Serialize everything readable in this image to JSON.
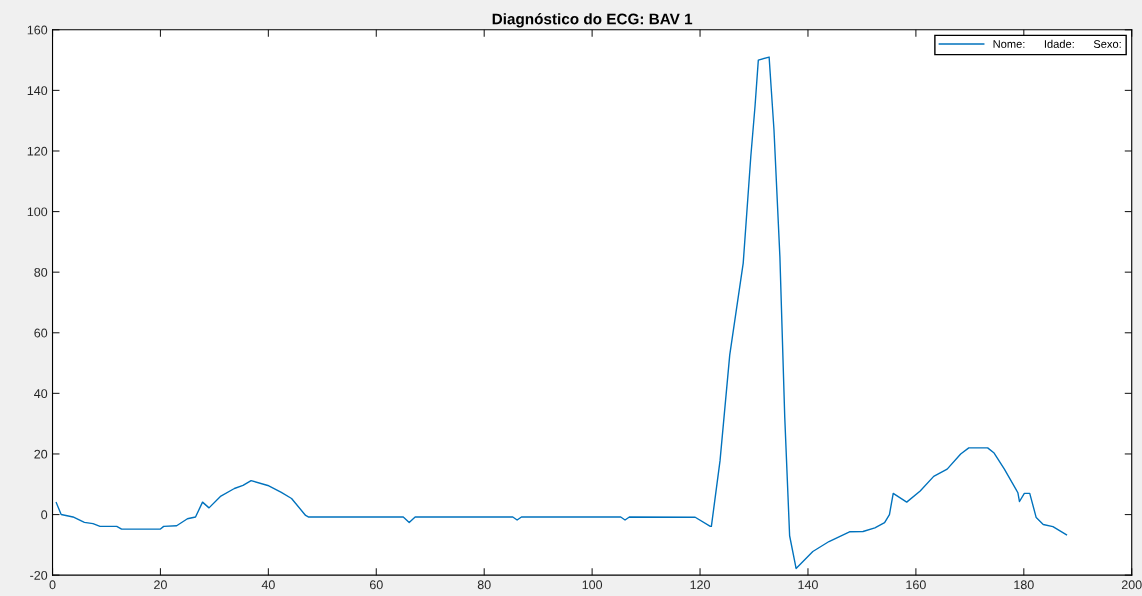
{
  "chart_data": {
    "type": "line",
    "title": "Diagnóstico do ECG: BAV 1",
    "xlim": [
      0,
      200
    ],
    "ylim": [
      -20,
      160
    ],
    "xticks": [
      0,
      20,
      40,
      60,
      80,
      100,
      120,
      140,
      160,
      180,
      200
    ],
    "yticks": [
      -20,
      0,
      20,
      40,
      60,
      80,
      100,
      120,
      140,
      160
    ],
    "grid": false,
    "legend": "top right",
    "line_style": "solid",
    "marker": "none",
    "series": [
      {
        "name": "Nome:      Idade:      Sexo:",
        "color": "#0072bd",
        "x": [
          0.7,
          1.6,
          3.8,
          5.9,
          7.5,
          8.8,
          11.9,
          12.8,
          20.0,
          20.6,
          23.0,
          25.0,
          26.5,
          27.8,
          29.0,
          31.2,
          33.7,
          35.3,
          36.8,
          39.9,
          42.4,
          44.3,
          46.9,
          47.4,
          65.0,
          66.1,
          67.2,
          85.3,
          86.1,
          86.9,
          105.3,
          106.1,
          106.9,
          119.1,
          121.9,
          122.1,
          123.7,
          125.5,
          128.0,
          129.4,
          130.2,
          130.8,
          132.8,
          133.7,
          134.8,
          135.7,
          136.6,
          137.8,
          140.9,
          143.9,
          147.7,
          150.2,
          152.4,
          154.2,
          155.1,
          155.8,
          158.3,
          160.8,
          163.3,
          165.8,
          168.3,
          169.8,
          173.3,
          174.5,
          176.4,
          178.9,
          179.2,
          180.1,
          181.1,
          182.3,
          183.6,
          185.4,
          187.9
        ],
        "values": [
          3.9,
          0,
          -0.8,
          -2.6,
          -3,
          -3.9,
          -3.9,
          -4.8,
          -4.8,
          -3.9,
          -3.7,
          -1.4,
          -0.8,
          4.1,
          2.2,
          6.1,
          8.6,
          9.6,
          11.2,
          9.6,
          7.3,
          5.3,
          -0.3,
          -0.8,
          -0.8,
          -2.6,
          -0.8,
          -0.8,
          -1.8,
          -0.8,
          -0.8,
          -1.8,
          -0.8,
          -0.9,
          -3.9,
          -3.9,
          17.7,
          52.6,
          83,
          118,
          135,
          150,
          151,
          127,
          85,
          32,
          -7,
          -17.8,
          -12.2,
          -8.9,
          -5.7,
          -5.6,
          -4.4,
          -2.7,
          0,
          7,
          4.1,
          7.8,
          12.6,
          15,
          20,
          22,
          22,
          20.3,
          15,
          7.2,
          4.3,
          7,
          7,
          -1,
          -3.3,
          -4,
          -6.7
        ]
      }
    ]
  }
}
